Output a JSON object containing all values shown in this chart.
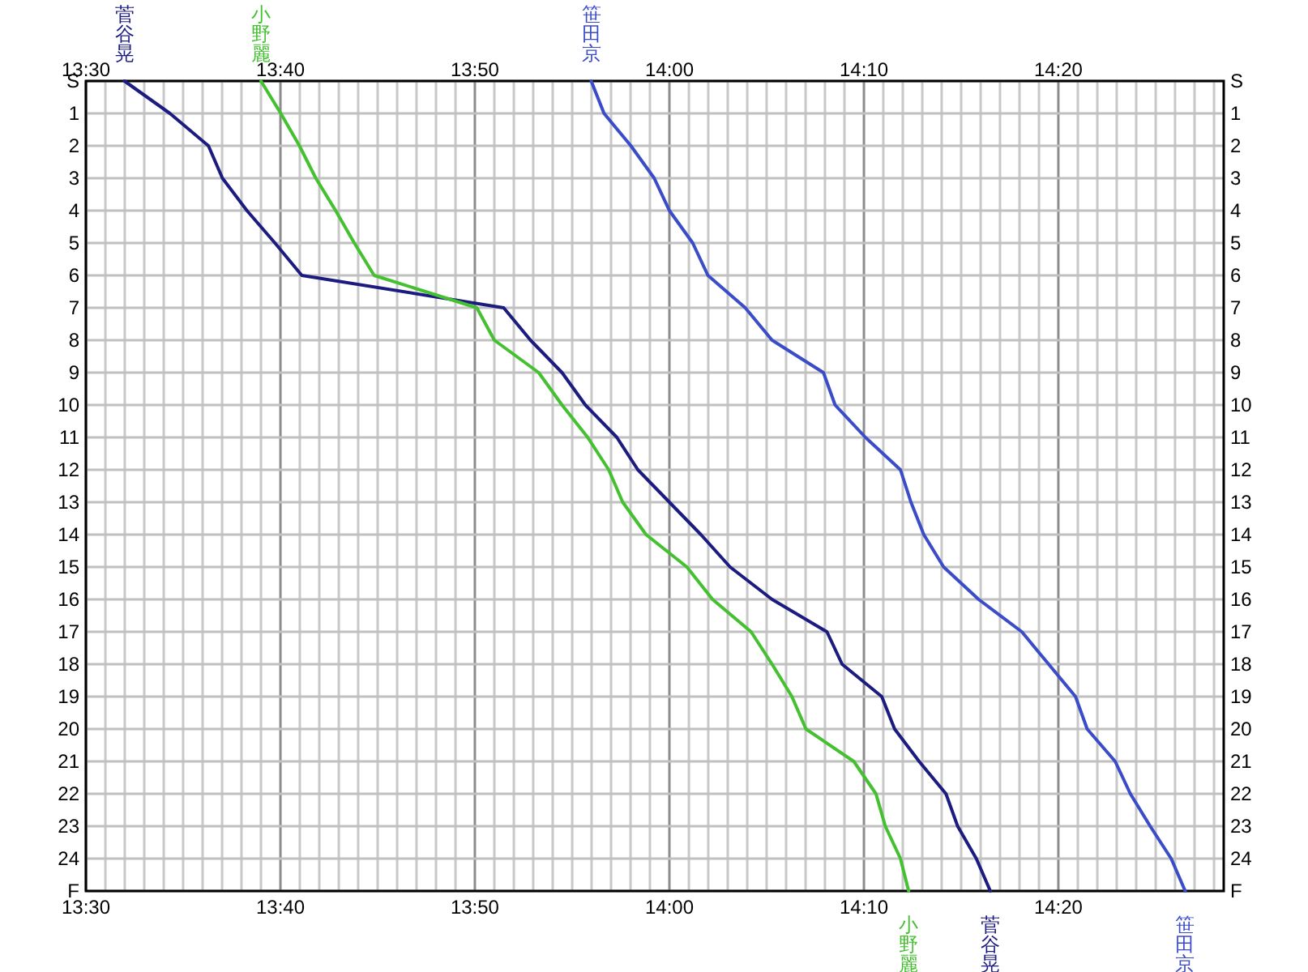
{
  "chart_data": {
    "type": "line",
    "grid": true,
    "orientation": "horizontal",
    "categories": [
      "S",
      "1",
      "2",
      "3",
      "4",
      "5",
      "6",
      "7",
      "8",
      "9",
      "10",
      "11",
      "12",
      "13",
      "14",
      "15",
      "16",
      "17",
      "18",
      "19",
      "20",
      "21",
      "22",
      "23",
      "24",
      "F"
    ],
    "series": [
      {
        "name": "菅谷晃",
        "color": "#1c1c80",
        "values": [
          13.533,
          13.572,
          13.605,
          13.617,
          13.638,
          13.662,
          13.685,
          13.858,
          13.881,
          13.908,
          13.928,
          13.955,
          13.973,
          14.0,
          14.027,
          14.052,
          14.088,
          14.135,
          14.148,
          14.182,
          14.193,
          14.214,
          14.237,
          14.247,
          14.263,
          14.275
        ]
      },
      {
        "name": "小野麗",
        "color": "#44c030",
        "values": [
          13.65,
          13.667,
          13.683,
          13.697,
          13.714,
          13.73,
          13.747,
          13.835,
          13.85,
          13.888,
          13.908,
          13.93,
          13.948,
          13.96,
          13.98,
          14.015,
          14.037,
          14.07,
          14.088,
          14.105,
          14.117,
          14.158,
          14.177,
          14.185,
          14.198,
          14.205
        ]
      },
      {
        "name": "笹田京",
        "color": "#3a4cc8",
        "values": [
          13.933,
          13.944,
          13.967,
          13.987,
          14.0,
          14.02,
          14.033,
          14.065,
          14.088,
          14.132,
          14.142,
          14.168,
          14.198,
          14.207,
          14.218,
          14.235,
          14.265,
          14.302,
          14.325,
          14.348,
          14.358,
          14.382,
          14.395,
          14.412,
          14.43,
          14.442
        ]
      }
    ],
    "xlim": [
      13.5,
      14.475
    ],
    "xticks": [
      {
        "value": 13.5,
        "label": "13:30"
      },
      {
        "value": 13.5167,
        "label": null
      },
      {
        "value": 13.5333,
        "label": null
      },
      {
        "value": 13.55,
        "label": null
      },
      {
        "value": 13.5667,
        "label": null
      },
      {
        "value": 13.5833,
        "label": null
      },
      {
        "value": 13.6,
        "label": null
      },
      {
        "value": 13.6167,
        "label": null
      },
      {
        "value": 13.6333,
        "label": null
      },
      {
        "value": 13.65,
        "label": null
      },
      {
        "value": 13.6667,
        "label": "13:40"
      },
      {
        "value": 13.6833,
        "label": null
      },
      {
        "value": 13.7,
        "label": null
      },
      {
        "value": 13.7167,
        "label": null
      },
      {
        "value": 13.7333,
        "label": null
      },
      {
        "value": 13.75,
        "label": null
      },
      {
        "value": 13.7667,
        "label": null
      },
      {
        "value": 13.7833,
        "label": null
      },
      {
        "value": 13.8,
        "label": null
      },
      {
        "value": 13.8167,
        "label": null
      },
      {
        "value": 13.8333,
        "label": "13:50"
      },
      {
        "value": 13.85,
        "label": null
      },
      {
        "value": 13.8667,
        "label": null
      },
      {
        "value": 13.8833,
        "label": null
      },
      {
        "value": 13.9,
        "label": null
      },
      {
        "value": 13.9167,
        "label": null
      },
      {
        "value": 13.9333,
        "label": null
      },
      {
        "value": 13.95,
        "label": null
      },
      {
        "value": 13.9667,
        "label": null
      },
      {
        "value": 13.9833,
        "label": null
      },
      {
        "value": 14,
        "label": "14:00"
      },
      {
        "value": 14.0167,
        "label": null
      },
      {
        "value": 14.0333,
        "label": null
      },
      {
        "value": 14.05,
        "label": null
      },
      {
        "value": 14.0667,
        "label": null
      },
      {
        "value": 14.0833,
        "label": null
      },
      {
        "value": 14.1,
        "label": null
      },
      {
        "value": 14.1167,
        "label": null
      },
      {
        "value": 14.1333,
        "label": null
      },
      {
        "value": 14.15,
        "label": null
      },
      {
        "value": 14.1667,
        "label": "14:10"
      },
      {
        "value": 14.1833,
        "label": null
      },
      {
        "value": 14.2,
        "label": null
      },
      {
        "value": 14.2167,
        "label": null
      },
      {
        "value": 14.2333,
        "label": null
      },
      {
        "value": 14.25,
        "label": null
      },
      {
        "value": 14.2667,
        "label": null
      },
      {
        "value": 14.2833,
        "label": null
      },
      {
        "value": 14.3,
        "label": null
      },
      {
        "value": 14.3167,
        "label": null
      },
      {
        "value": 14.3333,
        "label": "14:20"
      },
      {
        "value": 14.35,
        "label": null
      },
      {
        "value": 14.3667,
        "label": null
      },
      {
        "value": 14.3833,
        "label": null
      },
      {
        "value": 14.4,
        "label": null
      },
      {
        "value": 14.4167,
        "label": null
      },
      {
        "value": 14.4333,
        "label": null
      },
      {
        "value": 14.45,
        "label": null
      },
      {
        "value": 14.4667,
        "label": null
      }
    ],
    "x2lim": [
      13.5,
      14.475
    ],
    "x2ticks": [
      {
        "value": 13.5,
        "label": "13:30"
      },
      {
        "value": 13.6667,
        "label": "13:40"
      },
      {
        "value": 13.8333,
        "label": "13:50"
      },
      {
        "value": 14,
        "label": "14:00"
      },
      {
        "value": 14.1667,
        "label": "14:10"
      },
      {
        "value": 14.3333,
        "label": "14:20"
      }
    ]
  }
}
